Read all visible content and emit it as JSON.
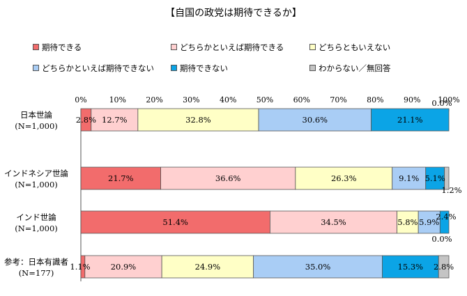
{
  "chart_data": {
    "type": "bar",
    "orientation": "horizontal",
    "stacked": "100%",
    "title": "【自国の政党は期待できるか】",
    "x_tick_labels": [
      "0%",
      "10%",
      "20%",
      "30%",
      "40%",
      "50%",
      "60%",
      "70%",
      "80%",
      "90%",
      "100%"
    ],
    "xlim": [
      0,
      100
    ],
    "series": [
      {
        "name": "期待できる",
        "color": "#f26c6c"
      },
      {
        "name": "どちらかといえば期待できる",
        "color": "#ffd0d0"
      },
      {
        "name": "どちらともいえない",
        "color": "#ffffc6"
      },
      {
        "name": "どちらかといえば期待できない",
        "color": "#a9cdf5"
      },
      {
        "name": "期待できない",
        "color": "#0ba4e6"
      },
      {
        "name": "わからない／無回答",
        "color": "#c4c4c4"
      }
    ],
    "categories": [
      {
        "label_lines": [
          "日本世論",
          "(N=1,000)"
        ],
        "values": [
          2.8,
          12.7,
          32.8,
          30.6,
          21.1,
          0.0
        ],
        "labels": [
          "2.8%",
          "12.7%",
          "32.8%",
          "30.6%",
          "21.1%",
          "0.0%"
        ]
      },
      {
        "label_lines": [
          "インドネシア世論",
          "(N=1,000)"
        ],
        "values": [
          21.7,
          36.6,
          26.3,
          9.1,
          5.1,
          1.2
        ],
        "labels": [
          "21.7%",
          "36.6%",
          "26.3%",
          "9.1%",
          "5.1%",
          "1.2%"
        ]
      },
      {
        "label_lines": [
          "インド世論",
          "(N=1,000)"
        ],
        "values": [
          51.4,
          34.5,
          5.8,
          5.9,
          2.4,
          0.0
        ],
        "labels": [
          "51.4%",
          "34.5%",
          "5.8%",
          "5.9%",
          "2.4%",
          "0.0%"
        ]
      },
      {
        "label_lines": [
          "参考：日本有識者",
          "(N=177)"
        ],
        "values": [
          1.1,
          20.9,
          24.9,
          35.0,
          15.3,
          2.8
        ],
        "labels": [
          "1.1%",
          "20.9%",
          "24.9%",
          "35.0%",
          "15.3%",
          "2.8%"
        ]
      }
    ]
  }
}
